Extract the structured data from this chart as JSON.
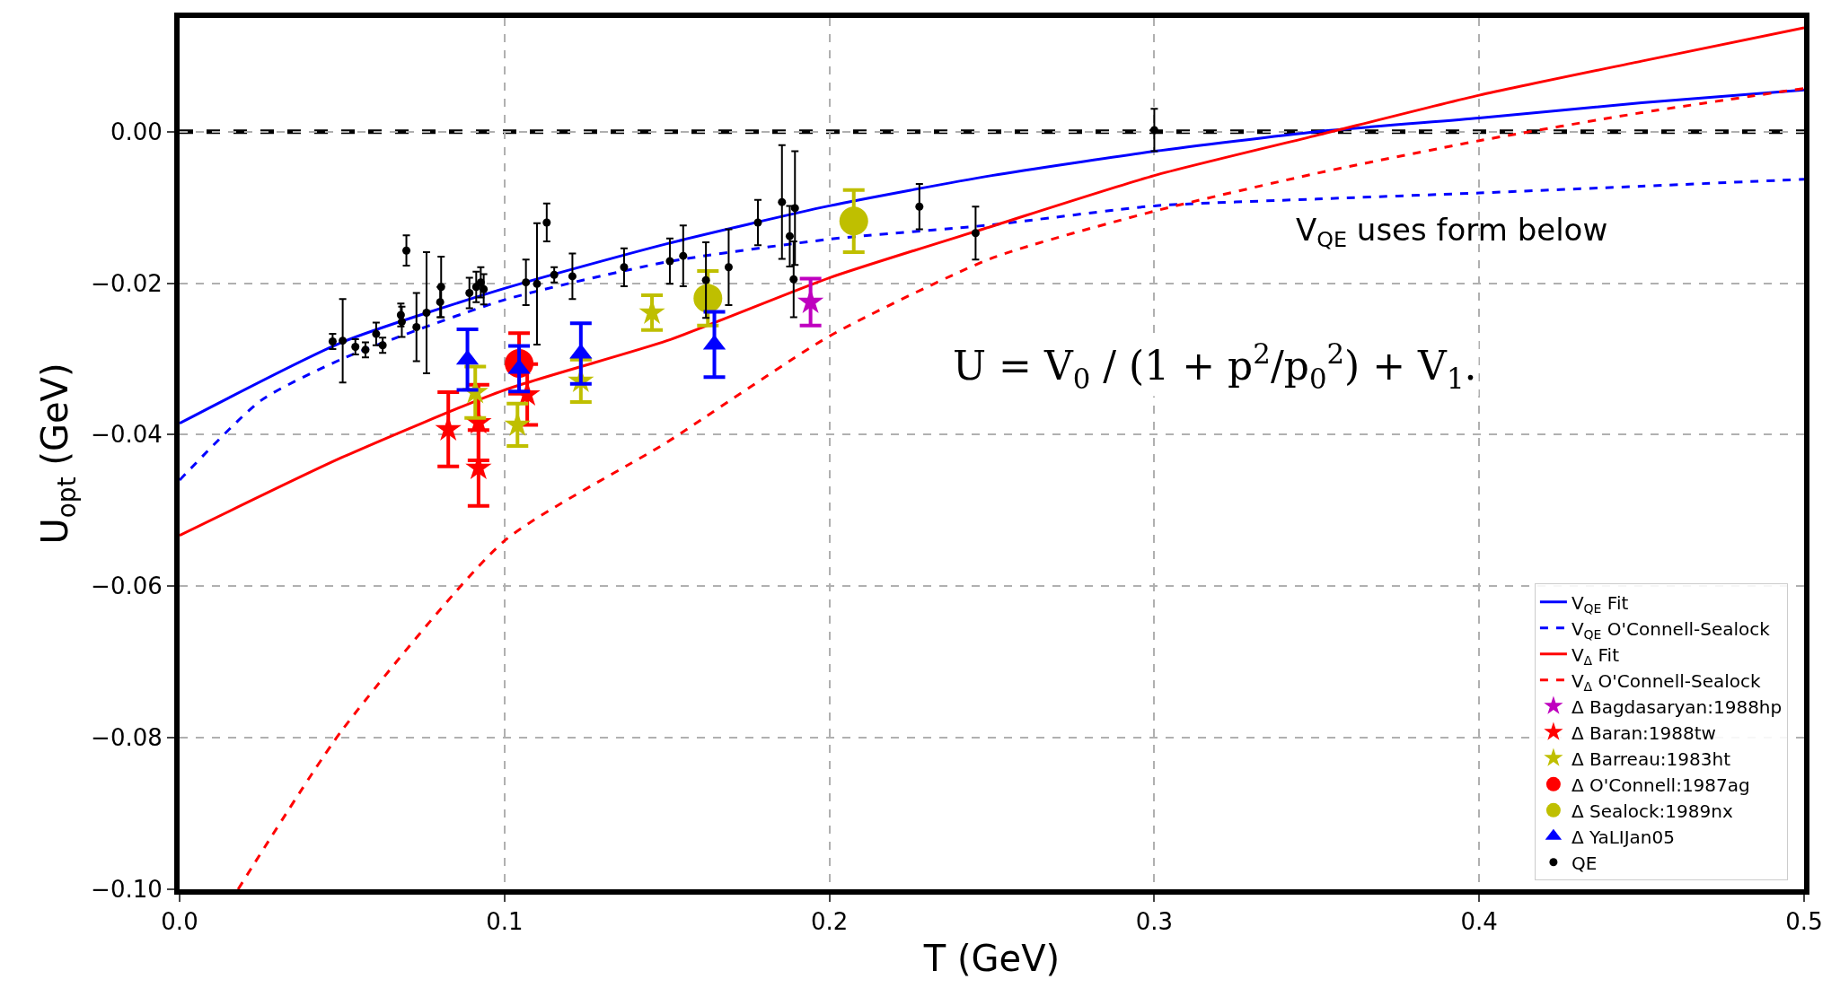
{
  "chart_data": {
    "type": "scatter",
    "xlabel": "T (GeV)",
    "ylabel": "U$_{opt}$ (GeV)",
    "xlim": [
      0,
      0.5
    ],
    "ylim": [
      -0.1,
      0.015
    ],
    "xticks": [
      {
        "value": 0,
        "label": "0.0"
      },
      {
        "value": 0.1,
        "label": "0.1"
      },
      {
        "value": 0.2,
        "label": "0.2"
      },
      {
        "value": 0.3,
        "label": "0.3"
      },
      {
        "value": 0.4,
        "label": "0.4"
      },
      {
        "value": 0.5,
        "label": "0.5"
      }
    ],
    "yticks": [
      {
        "value": -0.1,
        "label": "−0.10"
      },
      {
        "value": -0.08,
        "label": "−0.08"
      },
      {
        "value": -0.06,
        "label": "−0.06"
      },
      {
        "value": -0.04,
        "label": "−0.04"
      },
      {
        "value": -0.02,
        "label": "−0.02"
      },
      {
        "value": 0,
        "label": "0.00"
      }
    ],
    "grid": true,
    "legend": "bottom right",
    "ref_lines": [
      {
        "axis": "y",
        "value": 0,
        "color": "#000000",
        "line_style": "dashed"
      }
    ],
    "annotations": [
      "V$_{QE}$ uses form below",
      "U = V$_{0}$ / (1 + p$^{2}$/p$_{0}$$^{2}$) + V$_{1}$."
    ],
    "series": [
      {
        "name": "V$_{QE}$ Fit",
        "type": "line",
        "line_style": "solid",
        "marker": "none",
        "color": "#0000ff",
        "x": [
          0,
          0.05,
          0.1,
          0.15,
          0.2,
          0.25,
          0.3,
          0.35,
          0.4,
          0.45,
          0.5
        ],
        "values": [
          -0.0385,
          -0.0278,
          -0.0207,
          -0.0148,
          -0.0098,
          -0.0058,
          -0.0026,
          0.0,
          0.0018,
          0.0038,
          0.0055
        ]
      },
      {
        "name": "V$_{QE}$ O'Connell-Sealock",
        "type": "line",
        "line_style": "dashed",
        "marker": "none",
        "color": "#0000ff",
        "x": [
          0,
          0.025,
          0.05,
          0.1,
          0.15,
          0.2,
          0.25,
          0.3,
          0.35,
          0.4,
          0.45,
          0.5
        ],
        "values": [
          -0.046,
          -0.0355,
          -0.03,
          -0.0222,
          -0.0172,
          -0.0142,
          -0.0123,
          -0.0098,
          -0.0089,
          -0.0081,
          -0.0072,
          -0.0063
        ]
      },
      {
        "name": "V$_{Δ}$ Fit",
        "type": "line",
        "line_style": "solid",
        "marker": "none",
        "color": "#ff0000",
        "x": [
          0,
          0.05,
          0.1,
          0.15,
          0.2,
          0.25,
          0.3,
          0.35,
          0.4,
          0.45,
          0.5
        ],
        "values": [
          -0.0533,
          -0.043,
          -0.0341,
          -0.0276,
          -0.0193,
          -0.0125,
          -0.0058,
          -0.0005,
          0.0048,
          0.0093,
          0.0137
        ]
      },
      {
        "name": "V$_{Δ}$ O'Connell-Sealock",
        "type": "line",
        "line_style": "dashed",
        "marker": "none",
        "color": "#ff0000",
        "x": [
          0.018,
          0.05,
          0.1,
          0.15,
          0.2,
          0.25,
          0.3,
          0.35,
          0.4,
          0.45,
          0.5
        ],
        "values": [
          -0.1,
          -0.079,
          -0.054,
          -0.041,
          -0.027,
          -0.0167,
          -0.0105,
          -0.0055,
          -0.0012,
          0.0025,
          0.0057
        ]
      },
      {
        "name": "Δ Bagdasaryan:1988hp",
        "marker": "star",
        "color": "#bf00bf",
        "x": [
          0.1942
        ],
        "values": [
          -0.0225
        ],
        "errors": [
          0.0031
        ]
      },
      {
        "name": "Δ Baran:1988tw",
        "marker": "star",
        "color": "#ff0000",
        "x": [
          0.0827,
          0.092,
          0.092,
          0.107
        ],
        "values": [
          -0.0393,
          -0.0384,
          -0.0444,
          -0.0347
        ],
        "errors": [
          0.0049,
          0.005,
          0.005,
          0.004
        ]
      },
      {
        "name": "Δ Barreau:1983ht",
        "marker": "star",
        "color": "#bfbf00",
        "x": [
          0.091,
          0.104,
          0.1235,
          0.1454
        ],
        "values": [
          -0.0344,
          -0.0387,
          -0.0329,
          -0.0239
        ],
        "errors": [
          0.0034,
          0.0028,
          0.0028,
          0.0023
        ]
      },
      {
        "name": "Δ O'Connell:1987ag",
        "marker": "circle",
        "color": "#ff0000",
        "x": [
          0.1045
        ],
        "values": [
          -0.0306
        ],
        "errors": [
          0.004
        ]
      },
      {
        "name": "Δ Sealock:1989nx",
        "marker": "circle",
        "color": "#bfbf00",
        "x": [
          0.1626,
          0.2075
        ],
        "values": [
          -0.022,
          -0.0118
        ],
        "errors": [
          0.0036,
          0.0041
        ]
      },
      {
        "name": "Δ YaLIJan05",
        "marker": "triangle",
        "color": "#0000ff",
        "x": [
          0.0886,
          0.1045,
          0.1235,
          0.1646
        ],
        "values": [
          -0.0301,
          -0.0313,
          -0.0293,
          -0.0281
        ],
        "errors": [
          0.004,
          0.003,
          0.004,
          0.0043
        ]
      },
      {
        "name": "QE",
        "marker": "circle",
        "color": "#000000",
        "x": [
          0.0471,
          0.0502,
          0.0541,
          0.0572,
          0.0605,
          0.0625,
          0.0698,
          0.0681,
          0.0684,
          0.0729,
          0.076,
          0.0802,
          0.0805,
          0.0892,
          0.0913,
          0.0927,
          0.0936,
          0.1066,
          0.11,
          0.113,
          0.1153,
          0.1209,
          0.1368,
          0.1509,
          0.155,
          0.162,
          0.169,
          0.178,
          0.1854,
          0.1894,
          0.1878,
          0.189,
          0.2277,
          0.245,
          0.3
        ],
        "values": [
          -0.0277,
          -0.0276,
          -0.0284,
          -0.0288,
          -0.0267,
          -0.0282,
          -0.0157,
          -0.0242,
          -0.0251,
          -0.0258,
          -0.0239,
          -0.0225,
          -0.0205,
          -0.0213,
          -0.0205,
          -0.0199,
          -0.0208,
          -0.0199,
          -0.0201,
          -0.012,
          -0.0189,
          -0.0191,
          -0.0179,
          -0.0171,
          -0.0164,
          -0.0196,
          -0.0179,
          -0.012,
          -0.0093,
          -0.0101,
          -0.0138,
          -0.0195,
          -0.0099,
          -0.0134,
          0.0002
        ],
        "errors": [
          0.001,
          0.0055,
          0.001,
          0.001,
          0.0015,
          0.001,
          0.002,
          0.0015,
          0.002,
          0.0045,
          0.008,
          0.002,
          0.004,
          0.002,
          0.002,
          0.002,
          0.002,
          0.003,
          0.008,
          0.0025,
          0.001,
          0.003,
          0.0025,
          0.003,
          0.004,
          0.005,
          0.005,
          0.003,
          0.0075,
          0.0075,
          0.004,
          0.005,
          0.003,
          0.0035,
          0.0028
        ]
      }
    ]
  }
}
